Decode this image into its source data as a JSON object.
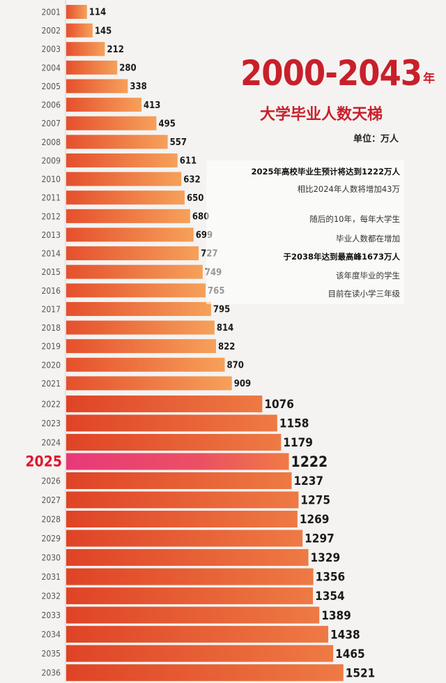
{
  "title": {
    "main": "2000-2043",
    "main_suffix": "年",
    "subtitle": "大学毕业人数天梯",
    "unit": "单位：万人"
  },
  "notes": [
    {
      "text": "2025年高校毕业生预计将达到1222万人",
      "bold": true
    },
    {
      "text": "相比2024年人数将增加43万",
      "bold": false
    },
    {
      "text": "随后的10年，每年大学生",
      "bold": false
    },
    {
      "text": "毕业人数都在增加",
      "bold": false
    },
    {
      "text": "于2038年达到最高峰1673万人",
      "bold": true
    },
    {
      "text": "该年度毕业的学生",
      "bold": false
    },
    {
      "text": "目前在读小学三年级",
      "bold": false
    }
  ],
  "colors": {
    "bar_light": "#f6a15a",
    "bar_dark": "#e5502d",
    "bar_2025_start": "#e8397a",
    "bar_2025_end": "#f07a45",
    "title": "#c8202b",
    "highlight_year": "#e0162e"
  },
  "chart_data": {
    "type": "bar",
    "orientation": "horizontal",
    "title": "2000-2043年 大学毕业人数天梯",
    "unit": "单位：万人",
    "highlight": "2025",
    "categories": [
      "2001",
      "2002",
      "2003",
      "2004",
      "2005",
      "2006",
      "2007",
      "2008",
      "2009",
      "2010",
      "2011",
      "2012",
      "2013",
      "2014",
      "2015",
      "2016",
      "2017",
      "2018",
      "2019",
      "2020",
      "2021",
      "2022",
      "2023",
      "2024",
      "2025",
      "2026",
      "2027",
      "2028",
      "2029",
      "2030",
      "2031",
      "2032",
      "2033",
      "2034",
      "2035",
      "2036"
    ],
    "values": [
      114,
      145,
      212,
      280,
      338,
      413,
      495,
      557,
      611,
      632,
      650,
      680,
      699,
      727,
      749,
      765,
      795,
      814,
      822,
      870,
      909,
      1076,
      1158,
      1179,
      1222,
      1237,
      1275,
      1269,
      1297,
      1329,
      1356,
      1354,
      1389,
      1438,
      1465,
      1521
    ],
    "value_labels": [
      "114",
      "145",
      "212",
      "280",
      "338",
      "413",
      "495",
      "557",
      "611",
      "632",
      "650",
      "680",
      "699",
      "727",
      "749",
      "765",
      "795",
      "814",
      "822",
      "870",
      "909",
      "1076",
      "1158",
      "1179",
      "1222",
      "1237",
      "1275",
      "1269",
      "1297",
      "1329",
      "1356",
      "1354",
      "1389",
      "1438",
      "1465",
      "1521"
    ]
  }
}
